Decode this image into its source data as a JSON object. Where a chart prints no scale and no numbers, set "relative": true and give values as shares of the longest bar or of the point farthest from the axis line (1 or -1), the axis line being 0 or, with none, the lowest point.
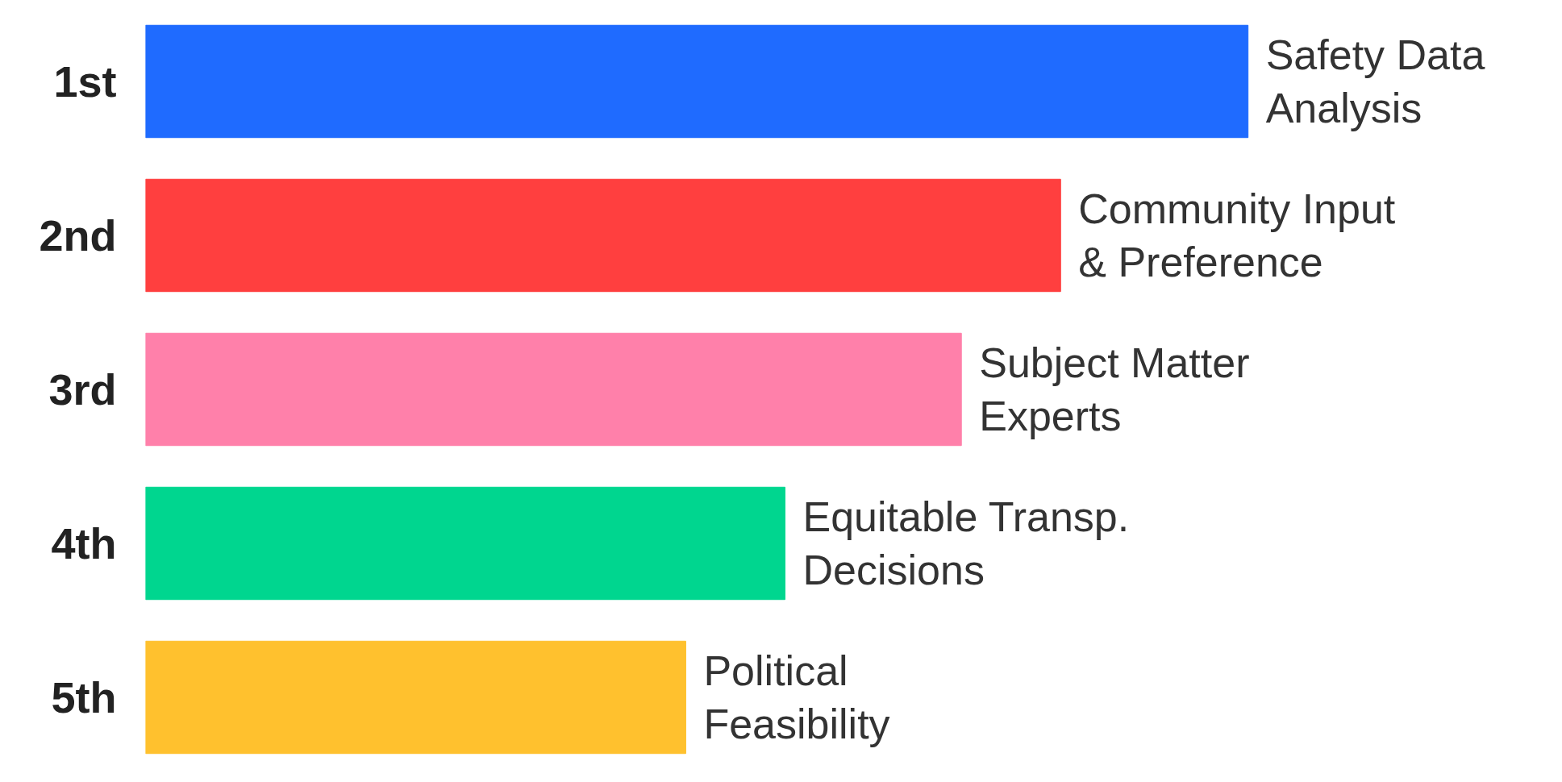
{
  "chart_data": {
    "type": "bar",
    "orientation": "horizontal",
    "relative": true,
    "categories": [
      "1st",
      "2nd",
      "3rd",
      "4th",
      "5th"
    ],
    "values": [
      1,
      0.83,
      0.74,
      0.58,
      0.49
    ],
    "colors": [
      "#1f6bff",
      "#ff3f3f",
      "#ff80aa",
      "#00d68f",
      "#ffc12e"
    ],
    "grid": false,
    "annotations": [
      {
        "text": "Safety Data Analysis",
        "x": 1,
        "y": "1st"
      },
      {
        "text": "Community Input & Preference",
        "x": 0.83,
        "y": "2nd"
      },
      {
        "text": "Subject Matter Experts",
        "x": 0.74,
        "y": "3rd"
      },
      {
        "text": "Equitable Transp. Decisions",
        "x": 0.58,
        "y": "4th"
      },
      {
        "text": "Political Feasibility",
        "x": 0.49,
        "y": "5th"
      }
    ]
  }
}
